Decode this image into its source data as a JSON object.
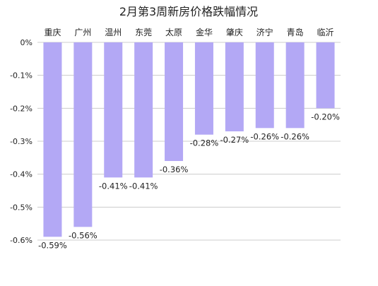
{
  "chart_data": {
    "type": "bar",
    "title": "2月第3周新房价格跌幅情况",
    "categories": [
      "重庆",
      "广州",
      "温州",
      "东莞",
      "太原",
      "金华",
      "肇庆",
      "济宁",
      "青岛",
      "临沂"
    ],
    "values": [
      -0.59,
      -0.56,
      -0.41,
      -0.41,
      -0.36,
      -0.28,
      -0.27,
      -0.26,
      -0.26,
      -0.2
    ],
    "data_labels": [
      "-0.59%",
      "-0.56%",
      "-0.41%",
      "-0.41%",
      "-0.36%",
      "-0.28%",
      "-0.27%",
      "-0.26%",
      "-0.26%",
      "-0.20%"
    ],
    "y_ticks": [
      0,
      -0.1,
      -0.2,
      -0.3,
      -0.4,
      -0.5,
      -0.6
    ],
    "y_tick_labels": [
      "0%",
      "-0.1%",
      "-0.2%",
      "-0.3%",
      "-0.4%",
      "-0.5%",
      "-0.6%"
    ],
    "ylim": [
      -0.6,
      0
    ],
    "x_axis_position": "top",
    "grid": true,
    "legend": "none",
    "bar_color": "#b3a8f5",
    "grid_color": "#cccccc"
  }
}
